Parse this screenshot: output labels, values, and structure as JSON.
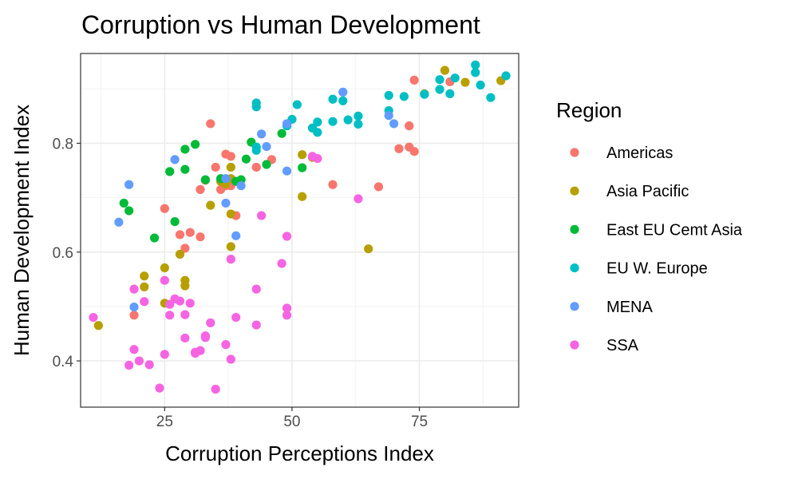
{
  "chart_data": {
    "type": "scatter",
    "title": "Corruption vs Human Development",
    "xlabel": "Corruption Perceptions Index",
    "ylabel": "Human Development Index",
    "xlim": [
      8.5,
      94.5
    ],
    "ylim": [
      0.315,
      0.965
    ],
    "x_ticks": [
      25,
      50,
      75
    ],
    "y_ticks": [
      0.4,
      0.6,
      0.8
    ],
    "grid": true,
    "legend_title": "Region",
    "legend_position": "right",
    "series": [
      {
        "name": "Americas",
        "color": "#F8766D",
        "points": [
          [
            19,
            0.484
          ],
          [
            25,
            0.68
          ],
          [
            28,
            0.632
          ],
          [
            29,
            0.607
          ],
          [
            30,
            0.636
          ],
          [
            32,
            0.628
          ],
          [
            32,
            0.715
          ],
          [
            33,
            0.732
          ],
          [
            34,
            0.836
          ],
          [
            35,
            0.756
          ],
          [
            36,
            0.715
          ],
          [
            37,
            0.78
          ],
          [
            37,
            0.722
          ],
          [
            38,
            0.776
          ],
          [
            38,
            0.722
          ],
          [
            39,
            0.73
          ],
          [
            39,
            0.667
          ],
          [
            43,
            0.756
          ],
          [
            46,
            0.77
          ],
          [
            58,
            0.724
          ],
          [
            67,
            0.72
          ],
          [
            71,
            0.79
          ],
          [
            73,
            0.832
          ],
          [
            73,
            0.793
          ],
          [
            74,
            0.785
          ],
          [
            74,
            0.916
          ],
          [
            81,
            0.913
          ]
        ]
      },
      {
        "name": "Asia Pacific",
        "color": "#B79F00",
        "points": [
          [
            12,
            0.465
          ],
          [
            21,
            0.536
          ],
          [
            21,
            0.556
          ],
          [
            25,
            0.506
          ],
          [
            25,
            0.571
          ],
          [
            28,
            0.596
          ],
          [
            29,
            0.548
          ],
          [
            29,
            0.538
          ],
          [
            34,
            0.686
          ],
          [
            36,
            0.73
          ],
          [
            37,
            0.725
          ],
          [
            38,
            0.756
          ],
          [
            38,
            0.735
          ],
          [
            38,
            0.67
          ],
          [
            38,
            0.61
          ],
          [
            52,
            0.779
          ],
          [
            52,
            0.702
          ],
          [
            54,
            0.774
          ],
          [
            65,
            0.606
          ],
          [
            76,
            0.891
          ],
          [
            80,
            0.934
          ],
          [
            84,
            0.912
          ],
          [
            91,
            0.915
          ]
        ]
      },
      {
        "name": "East EU Cemt Asia",
        "color": "#00BA38",
        "points": [
          [
            17,
            0.69
          ],
          [
            18,
            0.676
          ],
          [
            23,
            0.626
          ],
          [
            26,
            0.748
          ],
          [
            27,
            0.656
          ],
          [
            29,
            0.752
          ],
          [
            29,
            0.789
          ],
          [
            31,
            0.798
          ],
          [
            33,
            0.733
          ],
          [
            36,
            0.735
          ],
          [
            39,
            0.73
          ],
          [
            40,
            0.733
          ],
          [
            41,
            0.771
          ],
          [
            42,
            0.802
          ],
          [
            45,
            0.761
          ],
          [
            48,
            0.818
          ],
          [
            52,
            0.755
          ]
        ]
      },
      {
        "name": "EU W. Europe",
        "color": "#00BFC4",
        "points": [
          [
            43,
            0.874
          ],
          [
            43,
            0.867
          ],
          [
            43,
            0.793
          ],
          [
            43,
            0.787
          ],
          [
            49,
            0.832
          ],
          [
            50,
            0.844
          ],
          [
            51,
            0.871
          ],
          [
            54,
            0.828
          ],
          [
            55,
            0.839
          ],
          [
            55,
            0.82
          ],
          [
            58,
            0.881
          ],
          [
            58,
            0.84
          ],
          [
            60,
            0.878
          ],
          [
            61,
            0.843
          ],
          [
            63,
            0.85
          ],
          [
            63,
            0.835
          ],
          [
            69,
            0.888
          ],
          [
            69,
            0.86
          ],
          [
            72,
            0.886
          ],
          [
            76,
            0.89
          ],
          [
            79,
            0.917
          ],
          [
            79,
            0.899
          ],
          [
            81,
            0.891
          ],
          [
            82,
            0.92
          ],
          [
            86,
            0.944
          ],
          [
            86,
            0.93
          ],
          [
            87,
            0.907
          ],
          [
            89,
            0.884
          ],
          [
            92,
            0.924
          ]
        ]
      },
      {
        "name": "MENA",
        "color": "#619CFF",
        "points": [
          [
            16,
            0.655
          ],
          [
            18,
            0.724
          ],
          [
            19,
            0.499
          ],
          [
            27,
            0.77
          ],
          [
            37,
            0.735
          ],
          [
            37,
            0.69
          ],
          [
            39,
            0.63
          ],
          [
            40,
            0.722
          ],
          [
            44,
            0.817
          ],
          [
            45,
            0.794
          ],
          [
            49,
            0.836
          ],
          [
            49,
            0.749
          ],
          [
            60,
            0.894
          ],
          [
            69,
            0.851
          ],
          [
            70,
            0.836
          ]
        ]
      },
      {
        "name": "SSA",
        "color": "#F564E3",
        "points": [
          [
            11,
            0.48
          ],
          [
            18,
            0.392
          ],
          [
            19,
            0.421
          ],
          [
            19,
            0.532
          ],
          [
            20,
            0.4
          ],
          [
            21,
            0.509
          ],
          [
            22,
            0.393
          ],
          [
            24,
            0.35
          ],
          [
            25,
            0.412
          ],
          [
            25,
            0.548
          ],
          [
            26,
            0.484
          ],
          [
            26,
            0.504
          ],
          [
            27,
            0.514
          ],
          [
            28,
            0.51
          ],
          [
            29,
            0.485
          ],
          [
            29,
            0.442
          ],
          [
            30,
            0.506
          ],
          [
            31,
            0.416
          ],
          [
            31,
            0.414
          ],
          [
            32,
            0.419
          ],
          [
            33,
            0.443
          ],
          [
            33,
            0.446
          ],
          [
            34,
            0.47
          ],
          [
            35,
            0.348
          ],
          [
            37,
            0.43
          ],
          [
            38,
            0.403
          ],
          [
            38,
            0.587
          ],
          [
            39,
            0.48
          ],
          [
            43,
            0.532
          ],
          [
            43,
            0.466
          ],
          [
            44,
            0.667
          ],
          [
            48,
            0.579
          ],
          [
            49,
            0.629
          ],
          [
            49,
            0.497
          ],
          [
            49,
            0.484
          ],
          [
            54,
            0.776
          ],
          [
            55,
            0.772
          ],
          [
            63,
            0.698
          ]
        ]
      }
    ]
  }
}
